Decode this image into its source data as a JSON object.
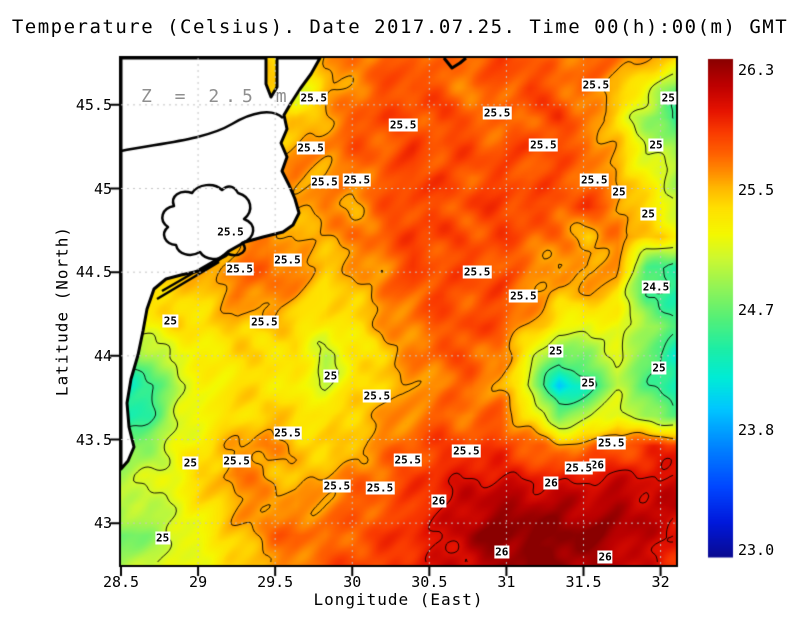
{
  "title": "Temperature (Celsius). Date 2017.07.25. Time 00(h):00(m) GMT",
  "annotation": "Z = 2.5 m",
  "axes": {
    "x_label": "Longitude (East)",
    "y_label": "Latitude (North)",
    "x_ticks": [
      28.5,
      29,
      29.5,
      30,
      30.5,
      31,
      31.5,
      32
    ],
    "y_ticks": [
      43,
      43.5,
      44,
      44.5,
      45,
      45.5
    ],
    "gridline_interval": 0.5
  },
  "colorbar": {
    "min": 23.0,
    "max": 26.3,
    "tick_labels": [
      "26.3",
      "25.5",
      "24.7",
      "23.8",
      "23.0"
    ]
  },
  "colors": {
    "background": "#ffffff",
    "land": "#ffffff",
    "coastline": "#000000",
    "contour_line": "#000000",
    "gridline": "#c6c6c6",
    "annotation_gray": "#8f8f8f",
    "label_box_bg": "#ffffff"
  },
  "chart_data": {
    "type": "heatmap",
    "title": "Temperature (Celsius). Date 2017.07.25. Time 00(h):00(m) GMT",
    "xlabel": "Longitude (East)",
    "ylabel": "Latitude (North)",
    "value_units": "Celsius",
    "value_range": [
      23.0,
      26.3
    ],
    "lon_range": [
      28.5,
      32.1
    ],
    "lat_range": [
      42.75,
      45.78
    ],
    "rows_order": "north_to_south",
    "grid_shape": [
      18,
      20
    ],
    "contour_levels": [
      24.5,
      25,
      25.5,
      26
    ],
    "values": [
      [
        25.4,
        25.4,
        25.4,
        25.4,
        25.4,
        25.4,
        25.2,
        25.5,
        25.6,
        25.7,
        25.7,
        25.6,
        25.7,
        25.8,
        25.7,
        25.6,
        25.7,
        25.6,
        25.5,
        25.4
      ],
      [
        25.4,
        25.4,
        25.4,
        25.4,
        25.4,
        25.4,
        25.0,
        25.4,
        25.6,
        25.7,
        25.8,
        25.7,
        25.6,
        25.7,
        25.8,
        25.7,
        25.6,
        25.5,
        25.1,
        24.7
      ],
      [
        25.4,
        25.4,
        25.4,
        25.4,
        25.4,
        25.4,
        25.3,
        25.5,
        25.7,
        25.8,
        25.7,
        25.8,
        25.7,
        25.6,
        25.7,
        25.8,
        25.6,
        25.3,
        24.8,
        24.4
      ],
      [
        25.4,
        25.4,
        25.4,
        25.4,
        25.4,
        25.4,
        25.5,
        25.6,
        25.7,
        25.7,
        25.8,
        25.7,
        25.8,
        25.7,
        25.8,
        25.7,
        25.7,
        25.4,
        25.0,
        24.8
      ],
      [
        25.4,
        25.4,
        25.4,
        25.4,
        25.4,
        25.5,
        25.6,
        25.5,
        25.6,
        25.7,
        25.8,
        25.8,
        25.7,
        25.8,
        25.7,
        25.8,
        25.6,
        25.5,
        25.2,
        24.9
      ],
      [
        25.4,
        25.4,
        25.4,
        25.4,
        25.4,
        25.6,
        25.5,
        25.6,
        25.5,
        25.7,
        25.8,
        25.7,
        25.8,
        25.8,
        25.8,
        25.7,
        25.8,
        25.6,
        25.3,
        25.0
      ],
      [
        25.4,
        25.4,
        25.4,
        25.4,
        25.5,
        25.6,
        25.4,
        25.5,
        25.6,
        25.7,
        25.8,
        25.8,
        25.7,
        25.8,
        25.7,
        25.6,
        25.4,
        25.6,
        25.4,
        25.2
      ],
      [
        25.4,
        25.4,
        25.4,
        25.5,
        25.6,
        25.7,
        25.6,
        25.4,
        25.5,
        25.6,
        25.8,
        25.7,
        25.8,
        25.7,
        25.6,
        25.5,
        25.6,
        25.5,
        24.6,
        24.4
      ],
      [
        25.4,
        25.4,
        25.3,
        25.4,
        25.6,
        25.6,
        25.5,
        25.3,
        25.4,
        25.6,
        25.7,
        25.8,
        25.7,
        25.8,
        25.6,
        25.4,
        25.5,
        25.3,
        24.5,
        24.4
      ],
      [
        25.0,
        25.2,
        25.3,
        25.3,
        25.4,
        25.4,
        25.3,
        25.2,
        25.3,
        25.5,
        25.6,
        25.7,
        25.8,
        25.7,
        25.5,
        25.2,
        25.0,
        25.2,
        24.8,
        24.6
      ],
      [
        24.6,
        24.8,
        25.1,
        25.2,
        25.3,
        25.3,
        25.3,
        24.9,
        25.2,
        25.4,
        25.6,
        25.7,
        25.7,
        25.6,
        25.1,
        24.6,
        24.8,
        25.0,
        24.7,
        24.2
      ],
      [
        24.2,
        24.4,
        25.0,
        25.2,
        25.3,
        25.3,
        25.2,
        25.0,
        25.3,
        25.4,
        25.5,
        25.6,
        25.7,
        25.5,
        25.0,
        24.0,
        24.4,
        24.9,
        24.6,
        24.3
      ],
      [
        24.3,
        24.5,
        25.0,
        25.2,
        25.3,
        25.4,
        25.3,
        25.3,
        25.4,
        25.5,
        25.6,
        25.7,
        25.6,
        25.7,
        25.3,
        24.7,
        24.9,
        25.2,
        24.8,
        24.6
      ],
      [
        24.6,
        24.8,
        25.1,
        25.3,
        25.5,
        25.6,
        25.4,
        25.3,
        25.4,
        25.6,
        25.7,
        25.8,
        25.8,
        25.8,
        25.7,
        25.5,
        25.6,
        25.7,
        25.8,
        25.9
      ],
      [
        24.9,
        25.0,
        25.2,
        25.4,
        25.6,
        25.5,
        25.4,
        25.5,
        25.6,
        25.7,
        25.8,
        25.9,
        26.0,
        26.0,
        25.9,
        25.9,
        26.0,
        26.0,
        26.0,
        26.0
      ],
      [
        25.0,
        24.9,
        25.1,
        25.3,
        25.5,
        25.6,
        25.5,
        25.6,
        25.7,
        25.7,
        25.8,
        26.0,
        26.1,
        26.2,
        26.2,
        26.2,
        26.1,
        26.2,
        26.1,
        26.1
      ],
      [
        24.6,
        24.8,
        25.0,
        25.2,
        25.4,
        25.6,
        25.7,
        25.6,
        25.7,
        25.8,
        25.9,
        26.0,
        26.2,
        26.3,
        26.3,
        26.3,
        26.3,
        26.2,
        26.1,
        26.0
      ],
      [
        24.8,
        25.0,
        25.1,
        25.2,
        25.3,
        25.5,
        25.6,
        25.7,
        25.8,
        25.8,
        25.9,
        26.0,
        26.1,
        26.2,
        26.3,
        26.3,
        26.2,
        26.1,
        26.0,
        25.9
      ]
    ],
    "colormap_anchors": [
      [
        0.0,
        10,
        10,
        145
      ],
      [
        0.07,
        0,
        25,
        220
      ],
      [
        0.14,
        0,
        70,
        255
      ],
      [
        0.22,
        0,
        130,
        255
      ],
      [
        0.3,
        0,
        200,
        255
      ],
      [
        0.36,
        0,
        236,
        215
      ],
      [
        0.42,
        30,
        238,
        165
      ],
      [
        0.48,
        85,
        240,
        120
      ],
      [
        0.54,
        145,
        244,
        88
      ],
      [
        0.6,
        205,
        248,
        50
      ],
      [
        0.65,
        245,
        248,
        0
      ],
      [
        0.7,
        255,
        225,
        0
      ],
      [
        0.745,
        255,
        180,
        0
      ],
      [
        0.775,
        255,
        140,
        0
      ],
      [
        0.81,
        255,
        98,
        0
      ],
      [
        0.855,
        250,
        58,
        0
      ],
      [
        0.9,
        228,
        18,
        0
      ],
      [
        0.95,
        188,
        0,
        0
      ],
      [
        1.0,
        138,
        0,
        0
      ]
    ],
    "contour_labels": [
      {
        "v": "25.5",
        "lon": 29.75,
        "lat": 45.54
      },
      {
        "v": "25.5",
        "lon": 30.33,
        "lat": 45.38
      },
      {
        "v": "25.5",
        "lon": 29.73,
        "lat": 45.24
      },
      {
        "v": "25.5",
        "lon": 29.82,
        "lat": 45.04
      },
      {
        "v": "25.5",
        "lon": 30.03,
        "lat": 45.05
      },
      {
        "v": "25.5",
        "lon": 30.94,
        "lat": 45.45
      },
      {
        "v": "25.5",
        "lon": 31.24,
        "lat": 45.26
      },
      {
        "v": "25.5",
        "lon": 31.58,
        "lat": 45.62
      },
      {
        "v": "25",
        "lon": 32.05,
        "lat": 45.54
      },
      {
        "v": "25",
        "lon": 31.97,
        "lat": 45.26
      },
      {
        "v": "25.5",
        "lon": 31.57,
        "lat": 45.05
      },
      {
        "v": "25",
        "lon": 31.73,
        "lat": 44.98
      },
      {
        "v": "25",
        "lon": 31.92,
        "lat": 44.85
      },
      {
        "v": "25.5",
        "lon": 29.21,
        "lat": 44.74
      },
      {
        "v": "25.5",
        "lon": 29.27,
        "lat": 44.52
      },
      {
        "v": "25.5",
        "lon": 29.58,
        "lat": 44.57
      },
      {
        "v": "25.5",
        "lon": 30.81,
        "lat": 44.5
      },
      {
        "v": "25.5",
        "lon": 31.11,
        "lat": 44.36
      },
      {
        "v": "25.5",
        "lon": 29.43,
        "lat": 44.2
      },
      {
        "v": "25",
        "lon": 28.82,
        "lat": 44.21
      },
      {
        "v": "25",
        "lon": 29.86,
        "lat": 43.88
      },
      {
        "v": "25.5",
        "lon": 30.16,
        "lat": 43.76
      },
      {
        "v": "25.5",
        "lon": 29.58,
        "lat": 43.54
      },
      {
        "v": "25",
        "lon": 28.95,
        "lat": 43.36
      },
      {
        "v": "25.5",
        "lon": 29.25,
        "lat": 43.37
      },
      {
        "v": "25.5",
        "lon": 29.9,
        "lat": 43.22
      },
      {
        "v": "25.5",
        "lon": 30.18,
        "lat": 43.21
      },
      {
        "v": "25.5",
        "lon": 30.36,
        "lat": 43.38
      },
      {
        "v": "25.5",
        "lon": 30.74,
        "lat": 43.43
      },
      {
        "v": "25.5",
        "lon": 31.68,
        "lat": 43.48
      },
      {
        "v": "26",
        "lon": 31.59,
        "lat": 43.35
      },
      {
        "v": "25.5",
        "lon": 31.47,
        "lat": 43.33
      },
      {
        "v": "26",
        "lon": 31.29,
        "lat": 43.24
      },
      {
        "v": "26",
        "lon": 30.56,
        "lat": 43.13
      },
      {
        "v": "26",
        "lon": 30.97,
        "lat": 42.83
      },
      {
        "v": "26",
        "lon": 31.64,
        "lat": 42.8
      },
      {
        "v": "25",
        "lon": 31.53,
        "lat": 43.84
      },
      {
        "v": "25",
        "lon": 31.32,
        "lat": 44.03
      },
      {
        "v": "24.5",
        "lon": 31.97,
        "lat": 44.41
      },
      {
        "v": "25",
        "lon": 31.99,
        "lat": 43.93
      },
      {
        "v": "25",
        "lon": 28.77,
        "lat": 42.91
      }
    ]
  }
}
